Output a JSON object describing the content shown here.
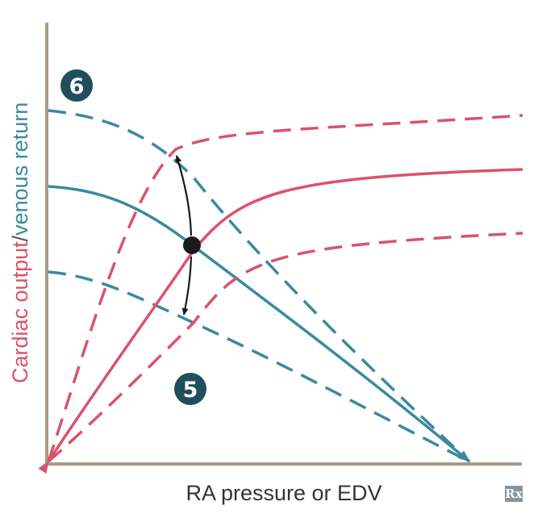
{
  "diagram": {
    "y_label_part1": "Cardiac output",
    "y_label_sep": "/",
    "y_label_part2": "venous return",
    "x_label": "RA pressure or EDV",
    "marker_top": "6",
    "marker_bottom": "5",
    "logo_text": "Rx",
    "curves": [
      {
        "id": "venous-return-normal",
        "kind": "venous return",
        "style": "solid"
      },
      {
        "id": "venous-return-increased",
        "kind": "venous return",
        "style": "dashed"
      },
      {
        "id": "venous-return-decreased",
        "kind": "venous return",
        "style": "dashed"
      },
      {
        "id": "cardiac-output-normal",
        "kind": "cardiac output",
        "style": "solid"
      },
      {
        "id": "cardiac-output-increased",
        "kind": "cardiac output",
        "style": "dashed"
      },
      {
        "id": "cardiac-output-decreased",
        "kind": "cardiac output",
        "style": "dashed"
      }
    ],
    "colors": {
      "cardiac_output": "#d9536b",
      "venous_return": "#3b8a9c",
      "axis": "#a89a88",
      "marker_circle": "#1f4f5c",
      "point": "#1a1a1a",
      "logo_bg": "#8a939a",
      "text": "#333333"
    }
  }
}
